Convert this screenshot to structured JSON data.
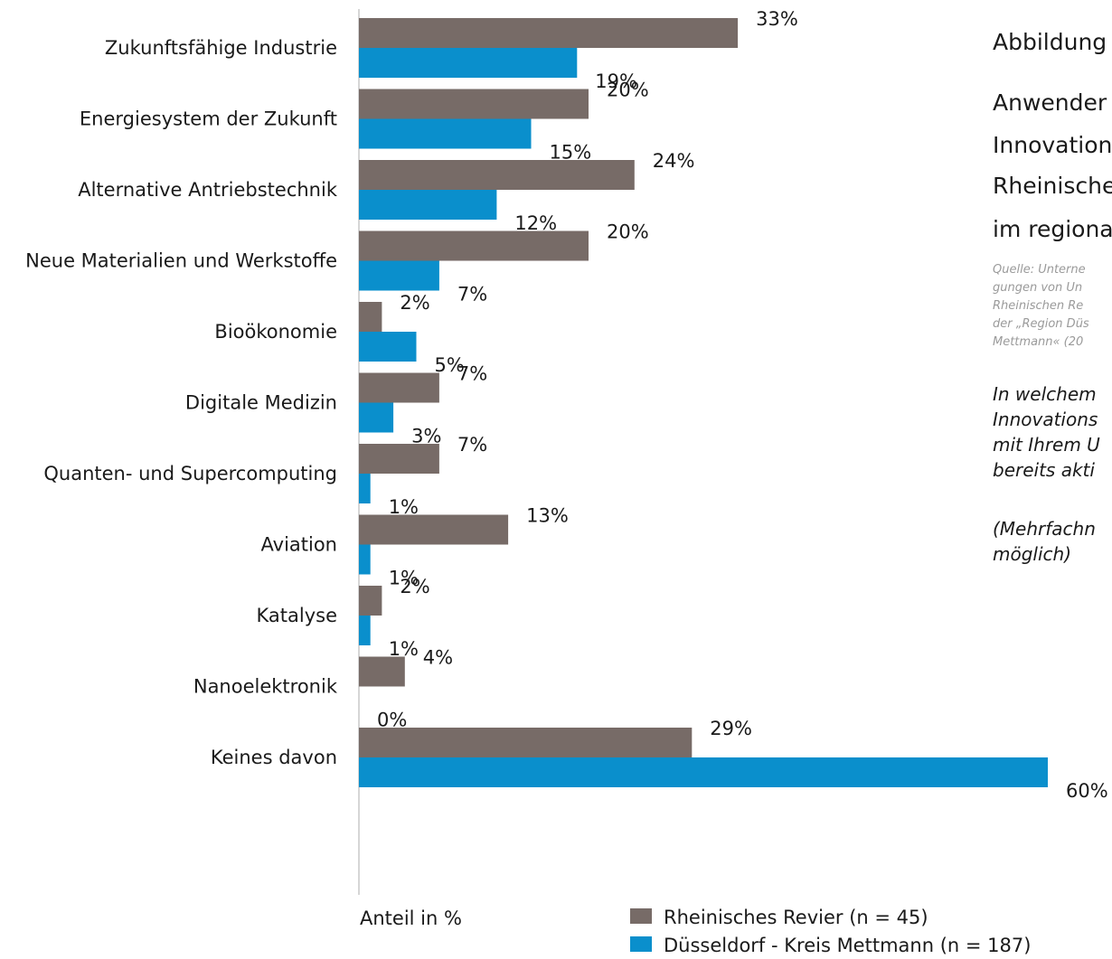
{
  "chart_data": {
    "type": "bar",
    "orientation": "horizontal",
    "categories": [
      "Zukunftsfähige Industrie",
      "Energiesystem der Zukunft",
      "Alternative Antriebstechnik",
      "Neue Materialien und Werkstoffe",
      "Bioökonomie",
      "Digitale Medizin",
      "Quanten- und Supercomputing",
      "Aviation",
      "Katalyse",
      "Nanoelektronik",
      "Keines davon"
    ],
    "series": [
      {
        "name": "Rheinisches Revier (n = 45)",
        "color": "#776b67",
        "values": [
          33,
          20,
          24,
          20,
          2,
          7,
          7,
          13,
          2,
          4,
          29
        ]
      },
      {
        "name": "Düsseldorf - Kreis Mettmann (n = 187)",
        "color": "#0a8fcc",
        "values": [
          19,
          15,
          12,
          7,
          5,
          3,
          1,
          1,
          1,
          0,
          60
        ]
      }
    ],
    "value_suffix": "%",
    "xlabel": "Anteil in %",
    "xlim": [
      0,
      60
    ],
    "grid": false,
    "legend_position": "bottom"
  },
  "side_panel": {
    "title_lines": [
      "Abbildung",
      "Anwender",
      "Innovation",
      "Rheinische",
      "im regiona"
    ],
    "source_lines": [
      "Quelle: Unterne",
      "gungen von Un",
      "Rheinischen Re",
      "der „Region Düs",
      "Mettmann« (20"
    ],
    "question_lines": [
      "In welchem",
      "Innovations",
      "mit Ihrem U",
      "bereits akti"
    ],
    "note_lines": [
      "(Mehrfachn",
      "möglich)"
    ]
  }
}
